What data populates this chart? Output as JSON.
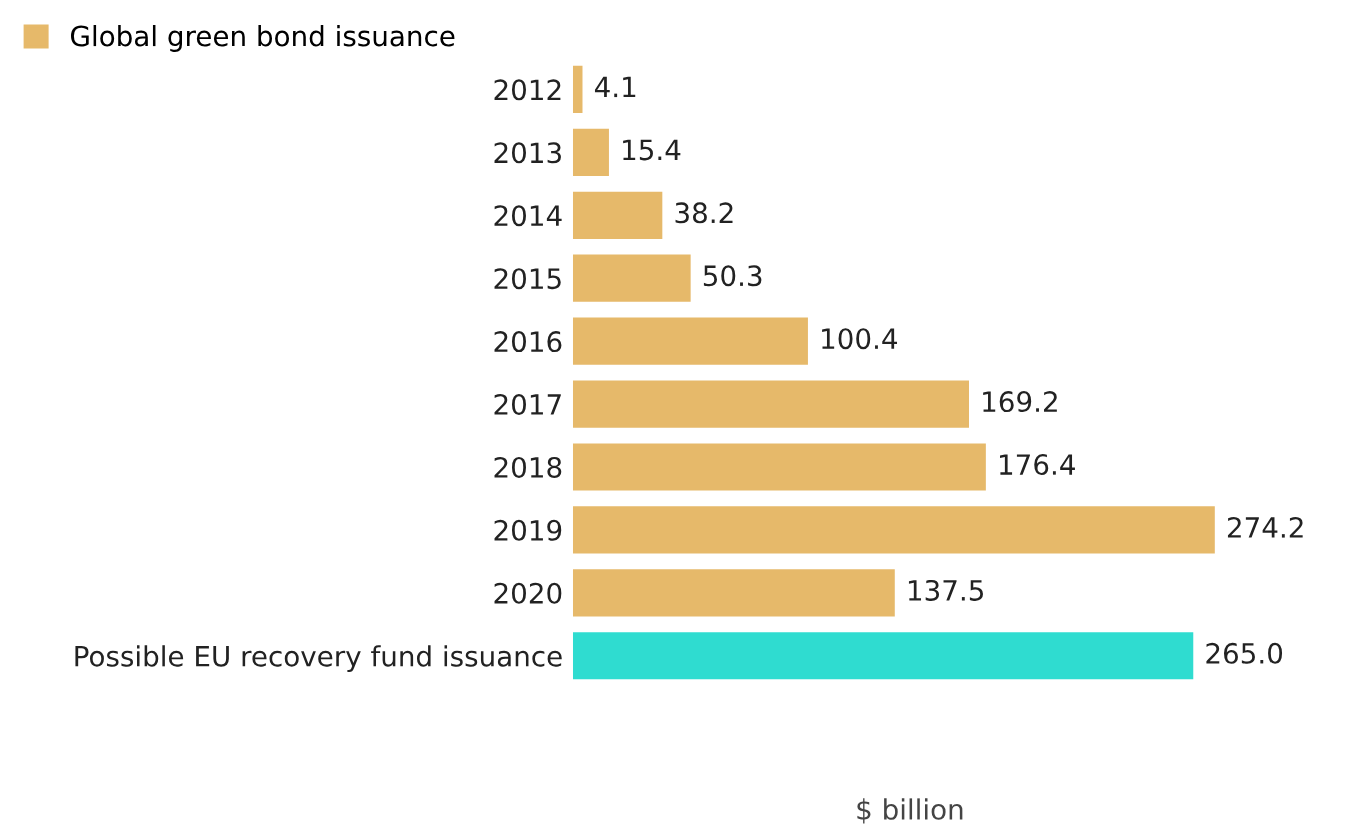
{
  "chart_data": {
    "type": "bar",
    "orientation": "horizontal",
    "xlabel": "$ billion",
    "categories": [
      "2012",
      "2013",
      "2014",
      "2015",
      "2016",
      "2017",
      "2018",
      "2019",
      "2020",
      "Possible EU recovery fund issuance"
    ],
    "series": [
      {
        "name": "Global green bond issuance",
        "color": "#e6b96a",
        "values": [
          4.1,
          15.4,
          38.2,
          50.3,
          100.4,
          169.2,
          176.4,
          274.2,
          137.5,
          265.0
        ],
        "colors": [
          "#e6b96a",
          "#e6b96a",
          "#e6b96a",
          "#e6b96a",
          "#e6b96a",
          "#e6b96a",
          "#e6b96a",
          "#e6b96a",
          "#e6b96a",
          "#2fdcd0"
        ],
        "value_labels": [
          "4.1",
          "15.4",
          "38.2",
          "50.3",
          "100.4",
          "169.2",
          "176.4",
          "274.2",
          "137.5",
          "265.0"
        ]
      }
    ],
    "legend": "top left",
    "grid": false
  }
}
